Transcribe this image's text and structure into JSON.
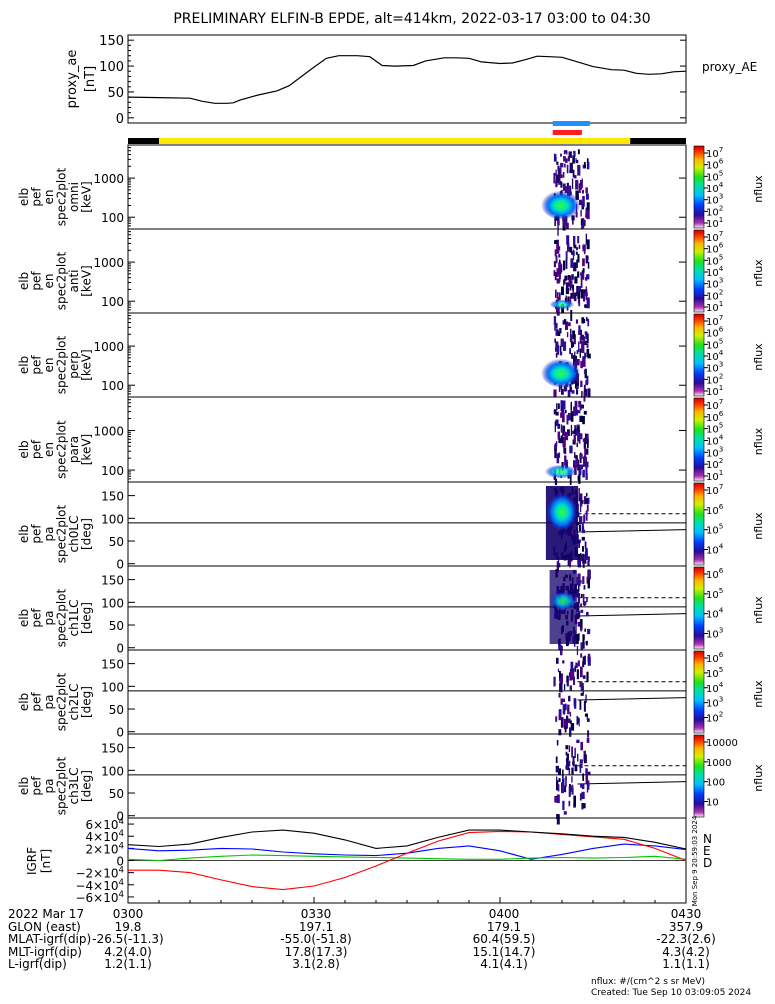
{
  "title": "PRELIMINARY ELFIN-B EPDE, alt=414km, 2022-03-17 03:00 to 04:30",
  "colors": {
    "orbit_bar_black": "#000000",
    "orbit_bar_yellow": "#ffe800",
    "science_zone_blue": "#1e90ff",
    "science_zone_red": "#ff1e1e",
    "igrf_N": "#0000ff",
    "igrf_E": "#00c800",
    "igrf_D": "#ff0000",
    "ae_line": "#000000"
  },
  "chart_data": [
    {
      "type": "line",
      "name": "proxy_ae",
      "ylabel_lines": [
        "proxy_ae",
        "[nT]"
      ],
      "legend_label": "proxy_AE",
      "ylim": [
        -10,
        160
      ],
      "yticks": [
        "150",
        "100",
        "50",
        "0"
      ],
      "x_minutes": [
        0,
        5,
        10,
        12,
        14,
        16,
        17,
        18,
        21,
        24,
        26,
        28,
        30,
        32,
        34,
        37,
        39,
        41,
        43,
        46,
        48,
        51,
        53,
        55,
        57,
        60,
        62,
        64,
        66,
        68,
        70,
        72,
        75,
        78,
        80,
        82,
        84,
        86,
        88,
        90
      ],
      "values": [
        40,
        39,
        38,
        32,
        28,
        28,
        29,
        34,
        44,
        52,
        62,
        80,
        98,
        115,
        120,
        120,
        118,
        101,
        100,
        101,
        110,
        116,
        116,
        115,
        108,
        105,
        106,
        112,
        119,
        118,
        117,
        110,
        99,
        93,
        92,
        86,
        84,
        85,
        89,
        90
      ]
    },
    {
      "type": "table",
      "name": "orbit_bar",
      "segments": [
        {
          "start": 0,
          "end": 5,
          "color": "black"
        },
        {
          "start": 5,
          "end": 81,
          "color": "yellow"
        },
        {
          "start": 81,
          "end": 90,
          "color": "black"
        }
      ],
      "science_zones": {
        "blue": [
          68.5,
          74.5
        ],
        "red": [
          68.5,
          74.5
        ]
      }
    },
    {
      "type": "heatmap",
      "name": "omni",
      "ylabel_lines": [
        "elb",
        "pef",
        "en",
        "spec2plot",
        "omni",
        "[keV]"
      ],
      "yticks": [
        "1000",
        "100"
      ],
      "colorbar_label": "nflux",
      "colorbar_ticks": [
        "10^7",
        "10^6",
        "10^5",
        "10^4",
        "10^3",
        "10^2",
        "10^1"
      ]
    },
    {
      "type": "heatmap",
      "name": "anti",
      "ylabel_lines": [
        "elb",
        "pef",
        "en",
        "spec2plot",
        "anti",
        "[keV]"
      ],
      "yticks": [
        "1000",
        "100"
      ],
      "colorbar_label": "nflux",
      "colorbar_ticks": [
        "10^7",
        "10^6",
        "10^5",
        "10^4",
        "10^3",
        "10^2",
        "10^1"
      ]
    },
    {
      "type": "heatmap",
      "name": "perp",
      "ylabel_lines": [
        "elb",
        "pef",
        "en",
        "spec2plot",
        "perp",
        "[keV]"
      ],
      "yticks": [
        "1000",
        "100"
      ],
      "colorbar_label": "nflux",
      "colorbar_ticks": [
        "10^7",
        "10^6",
        "10^5",
        "10^4",
        "10^3",
        "10^2",
        "10^1"
      ]
    },
    {
      "type": "heatmap",
      "name": "para",
      "ylabel_lines": [
        "elb",
        "pef",
        "en",
        "spec2plot",
        "para",
        "[keV]"
      ],
      "yticks": [
        "1000",
        "100"
      ],
      "colorbar_label": "nflux",
      "colorbar_ticks": [
        "10^7",
        "10^6",
        "10^5",
        "10^4",
        "10^3",
        "10^2",
        "10^1"
      ]
    },
    {
      "type": "heatmap",
      "name": "ch0LC",
      "ylabel_lines": [
        "elb",
        "pef",
        "pa",
        "spec2plot",
        "ch0LC",
        "[deg]"
      ],
      "yticks": [
        "150",
        "100",
        "50",
        "0"
      ],
      "colorbar_label": "nflux",
      "colorbar_ticks": [
        "10^7",
        "10^6",
        "10^5",
        "10^4"
      ]
    },
    {
      "type": "heatmap",
      "name": "ch1LC",
      "ylabel_lines": [
        "elb",
        "pef",
        "pa",
        "spec2plot",
        "ch1LC",
        "[deg]"
      ],
      "yticks": [
        "150",
        "100",
        "50",
        "0"
      ],
      "colorbar_label": "nflux",
      "colorbar_ticks": [
        "10^6",
        "10^5",
        "10^4",
        "10^3"
      ]
    },
    {
      "type": "heatmap",
      "name": "ch2LC",
      "ylabel_lines": [
        "elb",
        "pef",
        "pa",
        "spec2plot",
        "ch2LC",
        "[deg]"
      ],
      "yticks": [
        "150",
        "100",
        "50",
        "0"
      ],
      "colorbar_label": "nflux",
      "colorbar_ticks": [
        "10^6",
        "10^5",
        "10^4",
        "10^3",
        "10^2"
      ]
    },
    {
      "type": "heatmap",
      "name": "ch3LC",
      "ylabel_lines": [
        "elb",
        "pef",
        "pa",
        "spec2plot",
        "ch3LC",
        "[deg]"
      ],
      "yticks": [
        "150",
        "100",
        "50",
        "0"
      ],
      "colorbar_label": "nflux",
      "colorbar_ticks": [
        "10000",
        "1000",
        "100",
        "10"
      ]
    },
    {
      "type": "line",
      "name": "igrf",
      "ylabel_lines": [
        "IGRF",
        "[nT]"
      ],
      "ylim": [
        -70000,
        70000
      ],
      "yticks": [
        "6×10^4",
        "4×10^4",
        "2×10^4",
        "0",
        "−2×10^4",
        "−4×10^4",
        "−6×10^4"
      ],
      "legend": [
        "N",
        "E",
        "D"
      ],
      "x_minutes": [
        0,
        5,
        10,
        15,
        20,
        25,
        30,
        35,
        40,
        45,
        50,
        55,
        60,
        65,
        70,
        75,
        80,
        85,
        90
      ],
      "series": [
        {
          "name": "N",
          "values": [
            20000,
            16000,
            17000,
            20000,
            19000,
            14000,
            11000,
            9000,
            8000,
            12000,
            20000,
            24000,
            16000,
            2000,
            10000,
            20000,
            27000,
            24000,
            18000
          ]
        },
        {
          "name": "E",
          "values": [
            2000,
            0,
            4000,
            7000,
            9000,
            8000,
            7000,
            6000,
            5000,
            4000,
            3000,
            2000,
            2000,
            4000,
            5000,
            4000,
            5000,
            7000,
            2000
          ]
        },
        {
          "name": "D",
          "values": [
            -16000,
            -16000,
            -20000,
            -32000,
            -43000,
            -48000,
            -42000,
            -28000,
            -9000,
            12000,
            32000,
            46000,
            48000,
            47000,
            43000,
            39000,
            35000,
            20000,
            0
          ]
        },
        {
          "name": "F",
          "values": [
            26000,
            23000,
            27000,
            38000,
            47000,
            50000,
            45000,
            34000,
            20000,
            24000,
            38000,
            50000,
            50000,
            47000,
            44000,
            40000,
            38000,
            30000,
            19000
          ]
        }
      ]
    }
  ],
  "orbit_table": {
    "rows": [
      {
        "label": "2022 Mar 17",
        "values": [
          "0300",
          "0330",
          "0400",
          "0430"
        ]
      },
      {
        "label": "GLON (east)",
        "values": [
          "19.8",
          "197.1",
          "179.1",
          "357.9"
        ]
      },
      {
        "label": "MLAT-igrf(dip)",
        "values": [
          "-26.5(-11.3)",
          "-55.0(-51.8)",
          "60.4(59.5)",
          "-22.3(2.6)"
        ]
      },
      {
        "label": "MLT-igrf(dip)",
        "values": [
          "4.2(4.0)",
          "17.8(17.3)",
          "15.1(14.7)",
          "4.3(4.2)"
        ]
      },
      {
        "label": "L-igrf(dip)",
        "values": [
          "1.2(1.1)",
          "3.1(2.8)",
          "4.1(4.1)",
          "1.1(1.1)"
        ]
      }
    ]
  },
  "footer": {
    "units": "nflux: #/(cm^2 s sr MeV)",
    "created": "Created: Tue Sep 10 03:09:05 2024",
    "side_stamp": "Mon Sep 9 20:59:03 2024"
  }
}
